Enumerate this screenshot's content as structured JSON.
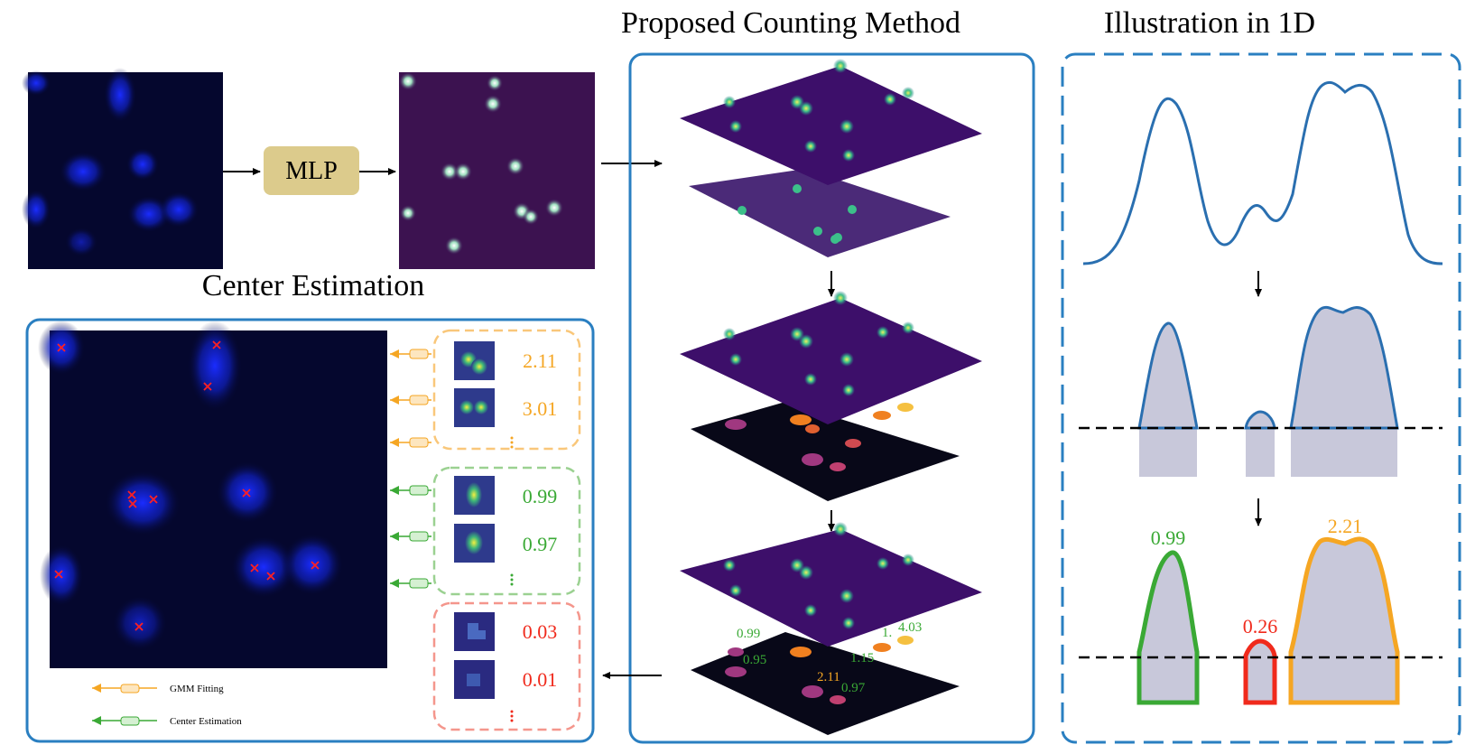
{
  "titles": {
    "proposed": "Proposed Counting Method",
    "illustration": "Illustration in 1D",
    "center_estimation": "Center Estimation"
  },
  "mlp_label": "MLP",
  "legend": {
    "gmm_fitting": "GMM Fitting",
    "center_estimation": "Center Estimation"
  },
  "center_boxes": {
    "orange": {
      "values": [
        "2.11",
        "3.01"
      ],
      "color": "#f5a623"
    },
    "green": {
      "values": [
        "0.99",
        "0.97"
      ],
      "color": "#3aa935"
    },
    "red": {
      "values": [
        "0.03",
        "0.01"
      ],
      "color": "#f02a1c"
    }
  },
  "surface_labels": {
    "green": [
      "0.99",
      "0.95",
      "1.15",
      "0.97",
      "1.",
      "4.03"
    ],
    "orange": [
      "2.11"
    ]
  },
  "illustration_values": {
    "left": {
      "value": "0.99",
      "color": "#3aa935"
    },
    "middle": {
      "value": "0.26",
      "color": "#f02a1c"
    },
    "right": {
      "value": "2.21",
      "color": "#f5a623"
    }
  },
  "colors": {
    "panel_border": "#2a7fc1",
    "mlp_fill": "#dccb8c",
    "surface": "#4a1a6e",
    "peak_fill": "#c8c8da",
    "curve": "#2a6fb0"
  }
}
